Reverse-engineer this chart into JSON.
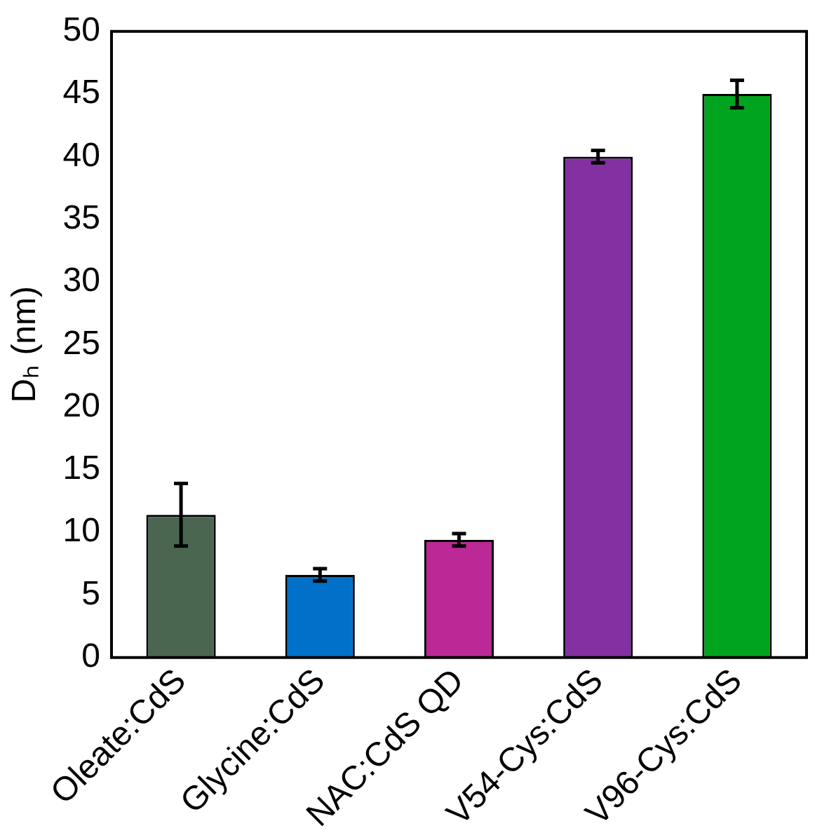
{
  "chart_data": {
    "type": "bar",
    "ylabel": "Dₕ (nm)",
    "categories": [
      "Oleate:CdS",
      "Glycine:CdS",
      "NAC:CdS QD",
      "V54-Cys:CdS",
      "V96-Cys:CdS"
    ],
    "values": [
      11.4,
      6.6,
      9.4,
      40.0,
      45.0
    ],
    "colors": [
      "#4a6650",
      "#0070c8",
      "#bc2896",
      "#8230a2",
      "#00a41e"
    ],
    "errors": [
      2.5,
      0.5,
      0.5,
      0.5,
      1.1
    ],
    "ylim": [
      0,
      50
    ],
    "yticks": [
      0,
      5,
      10,
      15,
      20,
      25,
      30,
      35,
      40,
      45,
      50
    ],
    "grid": false,
    "legend": false
  }
}
